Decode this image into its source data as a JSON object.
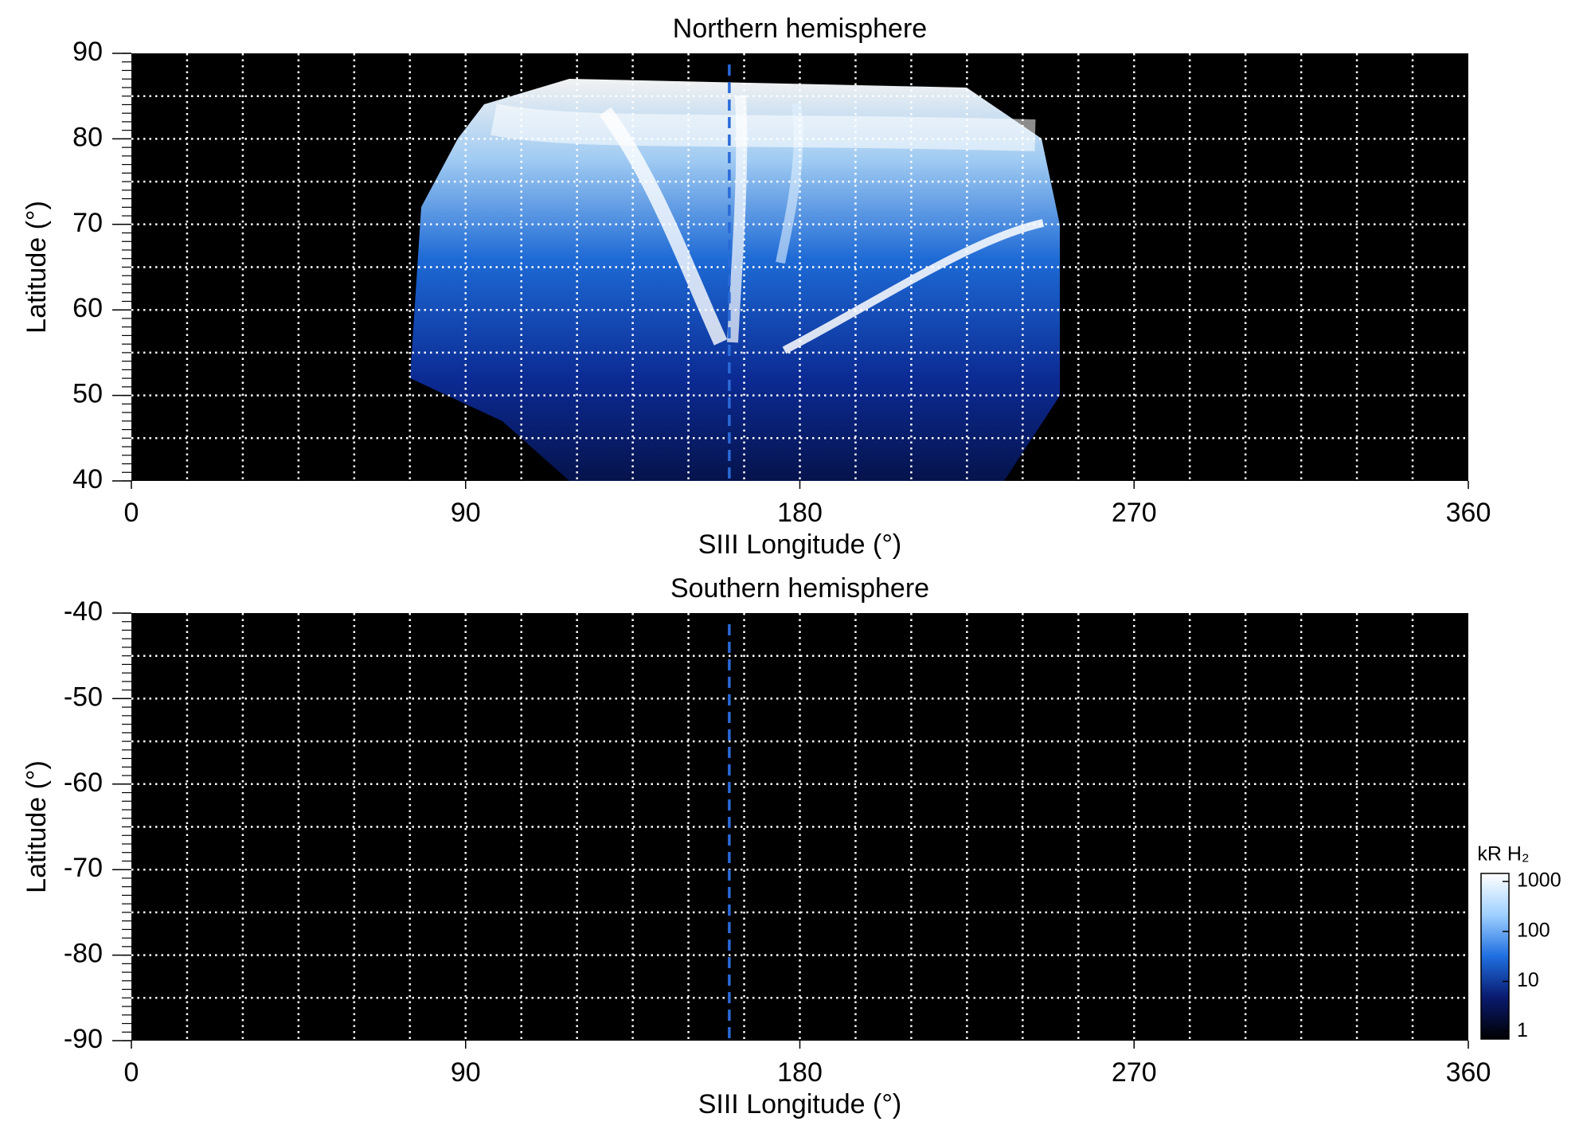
{
  "chart_data": [
    {
      "type": "heatmap",
      "title": "Northern hemisphere",
      "xlabel": "SIII Longitude (°)",
      "ylabel": "Latitude (°)",
      "xlim": [
        0,
        360
      ],
      "xticks": [
        0,
        90,
        180,
        270,
        360
      ],
      "ylim": [
        40,
        90
      ],
      "yticks": [
        40,
        50,
        60,
        70,
        80,
        90
      ],
      "grid": true,
      "xgrid_step": 15,
      "ygrid_step": 5,
      "yminor_step": 1,
      "reference_x": 161,
      "reference_color": "#2a6ad8",
      "background": "#000000"
    },
    {
      "type": "heatmap",
      "title": "Southern hemisphere",
      "xlabel": "SIII Longitude (°)",
      "ylabel": "Latitude (°)",
      "xlim": [
        0,
        360
      ],
      "xticks": [
        0,
        90,
        180,
        270,
        360
      ],
      "ylim": [
        -90,
        -40
      ],
      "yticks": [
        -90,
        -80,
        -70,
        -60,
        -50,
        -40
      ],
      "grid": true,
      "xgrid_step": 15,
      "ygrid_step": 5,
      "yminor_step": 1,
      "reference_x": 161,
      "reference_color": "#2a6ad8",
      "background": "#000000"
    },
    {
      "type": "colorbar",
      "label": "kR H₂",
      "log_scale": true,
      "clim": [
        0.7,
        1450
      ],
      "ticks": [
        1,
        10,
        100,
        1000
      ],
      "colormap": [
        "#000000",
        "#0a1a6e",
        "#1f6fe0",
        "#9fd0ff",
        "#ffffff"
      ]
    }
  ]
}
